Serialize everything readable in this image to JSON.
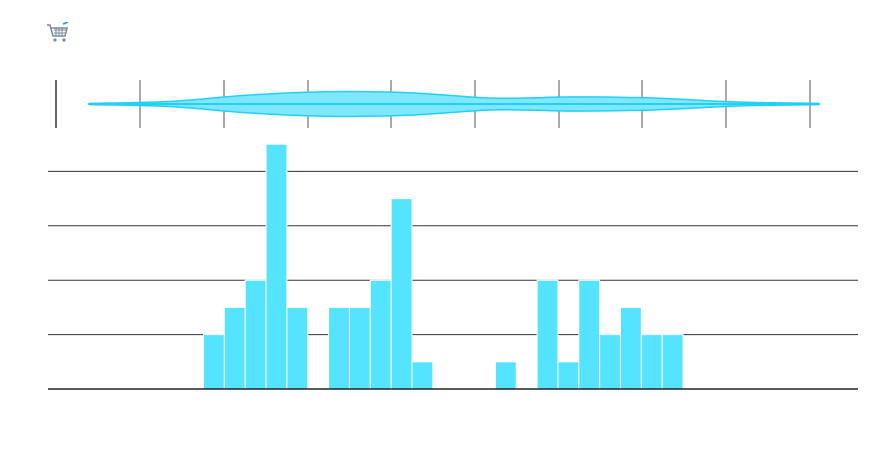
{
  "toolbar": {
    "cart_icon": "shopping-cart-icon",
    "cart_color": "#7a8a9a",
    "cart_accent": "#2aa8d8"
  },
  "chart_data": [
    {
      "type": "area",
      "subtype": "violin",
      "orientation": "horizontal",
      "title": "",
      "xlabel": "",
      "ylabel": "",
      "x": [
        0,
        1,
        2,
        3,
        4,
        5,
        6,
        7,
        8,
        9
      ],
      "widths": [
        0.05,
        0.2,
        0.7,
        0.95,
        0.85,
        0.45,
        0.55,
        0.45,
        0.15,
        0.05
      ],
      "xlim": [
        0,
        9
      ],
      "grid": true,
      "fill_color": "#7fe7ff",
      "stroke_color": "#21d1f5"
    },
    {
      "type": "bar",
      "subtype": "histogram",
      "title": "",
      "xlabel": "",
      "ylabel": "",
      "values": [
        0,
        0,
        0,
        0,
        0,
        0,
        0,
        2,
        3,
        4,
        9,
        3,
        0,
        3,
        3,
        4,
        7,
        1,
        0,
        0,
        0,
        1,
        0,
        4,
        1,
        4,
        2,
        3,
        2,
        2,
        0,
        0,
        0,
        0,
        0,
        0,
        0,
        0,
        0
      ],
      "ylim": [
        0,
        9
      ],
      "yticks": [
        0,
        2,
        4,
        6,
        8
      ],
      "grid": true,
      "bar_color": "#55e4ff"
    }
  ]
}
